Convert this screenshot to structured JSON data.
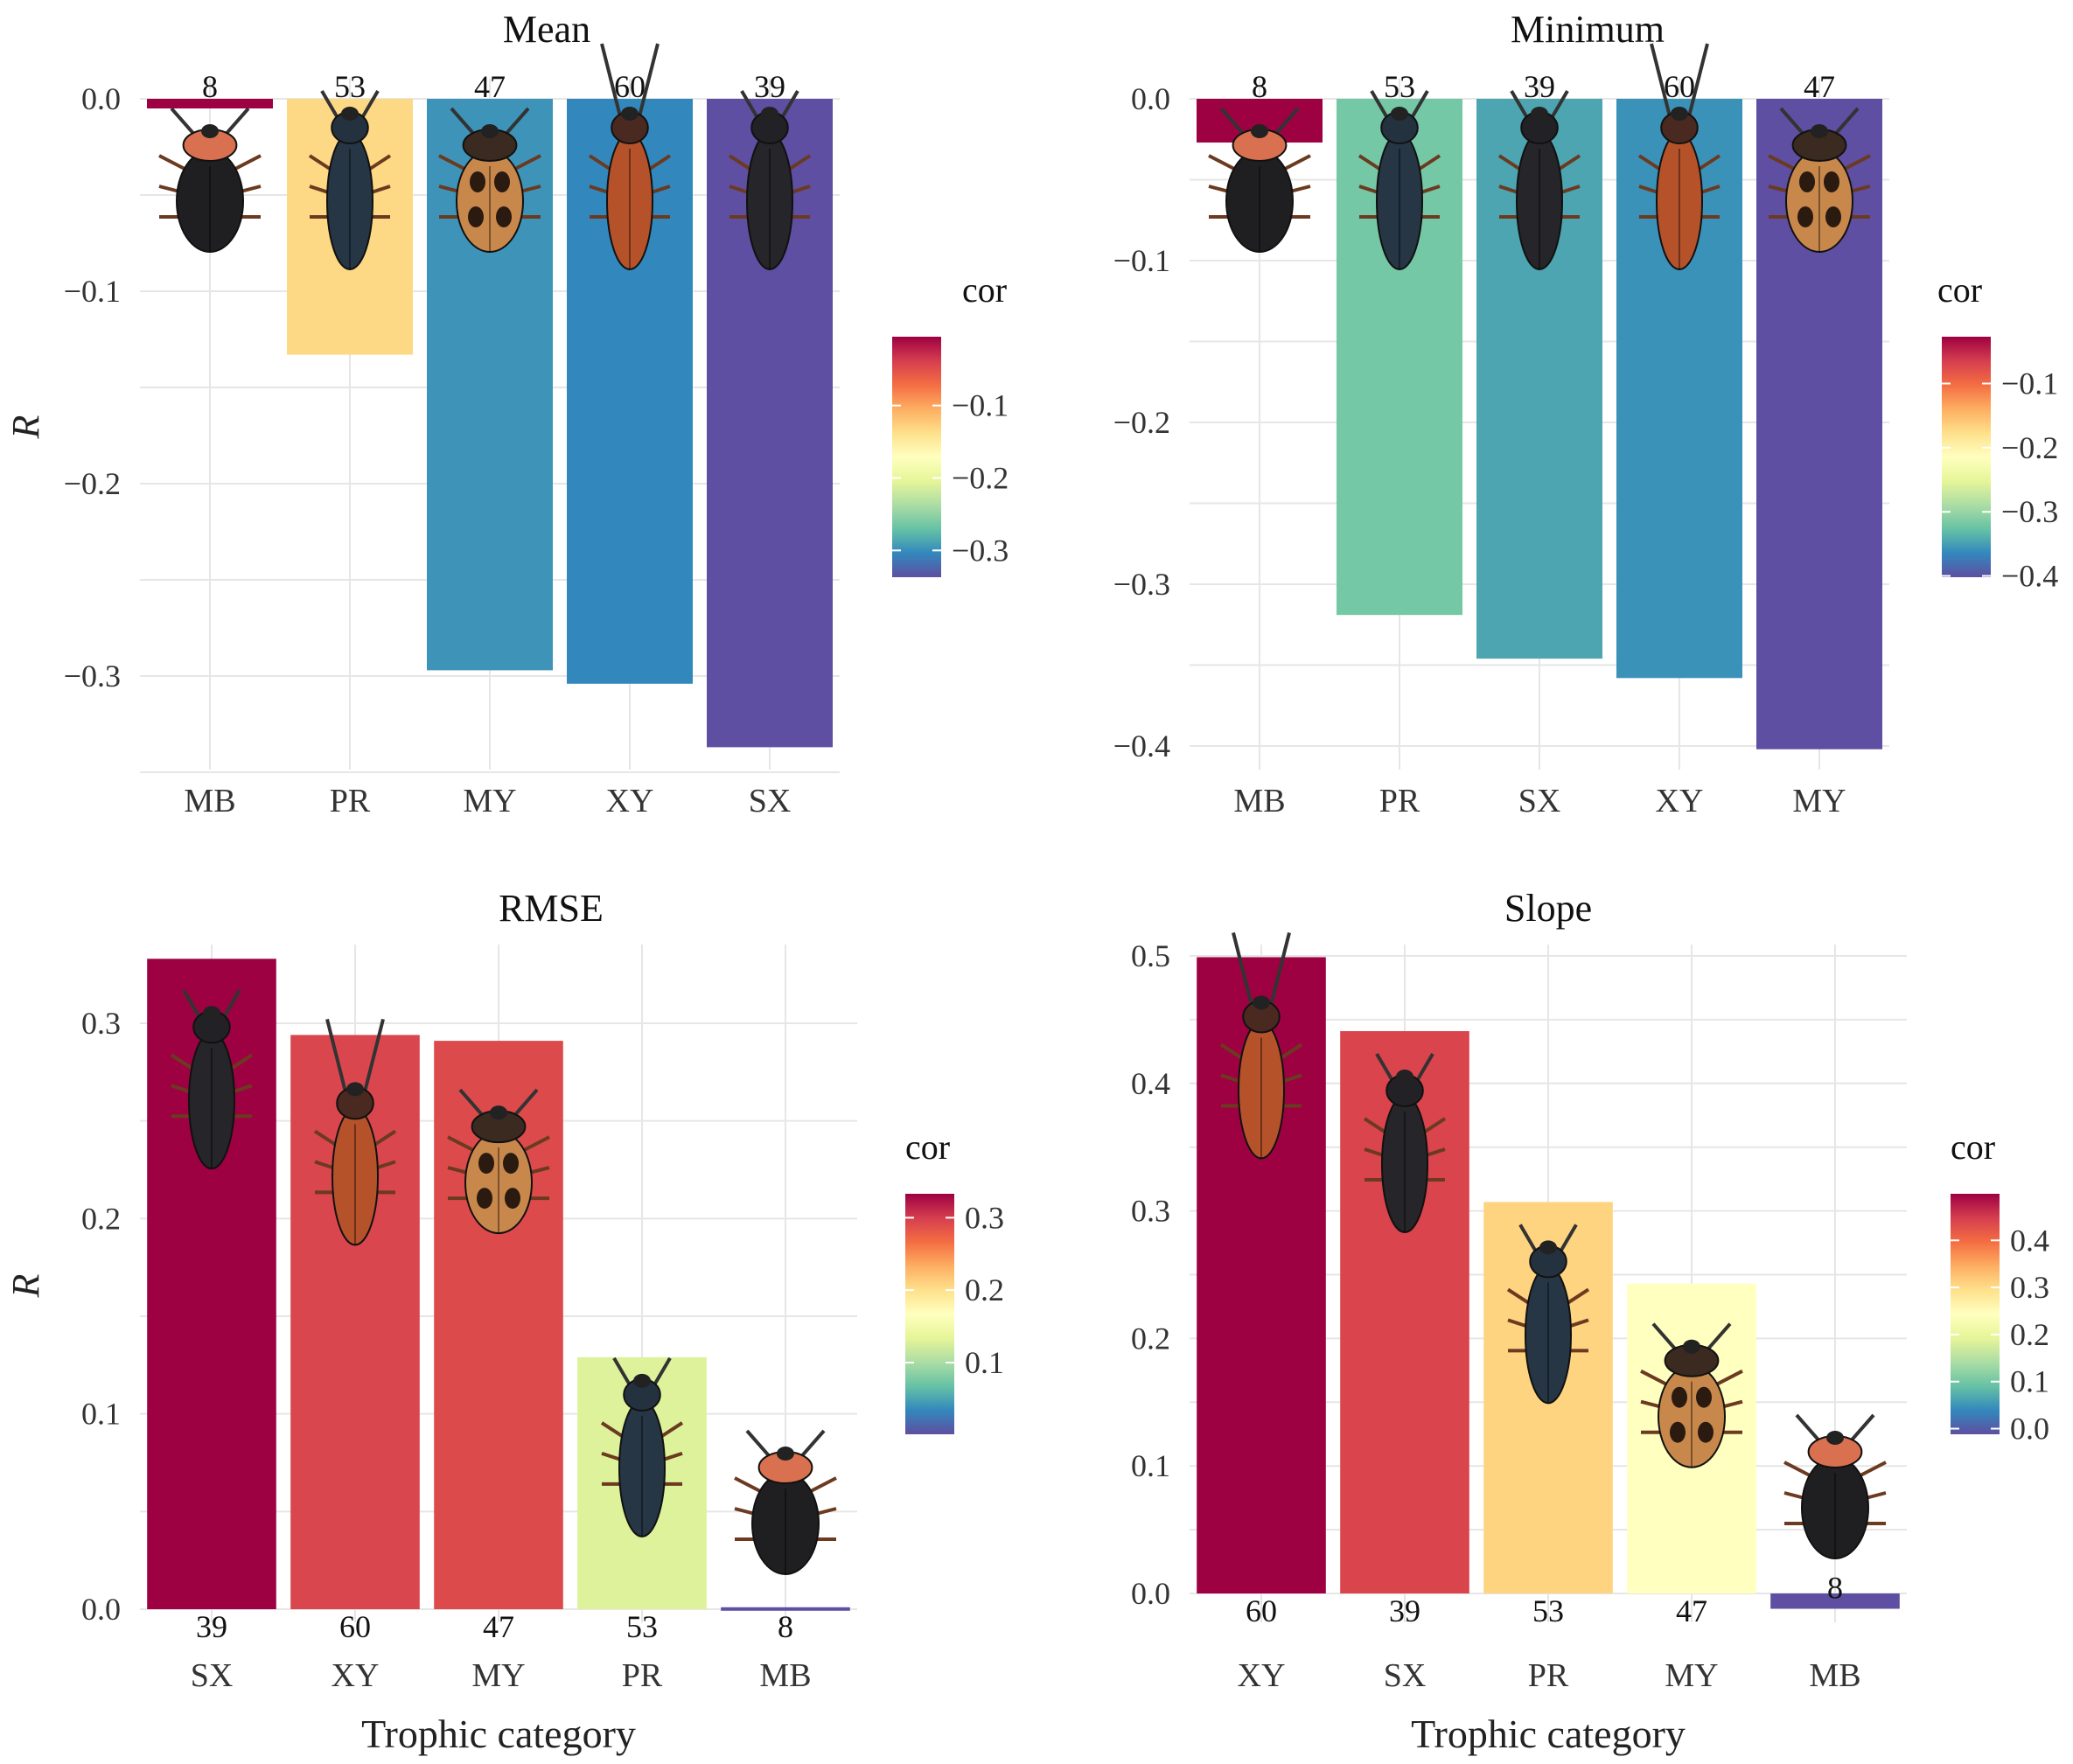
{
  "colors": {
    "scale": [
      "#5E4FA2",
      "#3288BD",
      "#66C2A5",
      "#ABDDA4",
      "#E6F598",
      "#FFFFBF",
      "#FEE08B",
      "#FDAE61",
      "#F46D43",
      "#D53E4F",
      "#9E0142"
    ],
    "beetles": {
      "MB": {
        "head": "#D9704F",
        "body": "#1F1F22"
      },
      "PR": {
        "head": "#243240",
        "body": "#263645"
      },
      "MY": {
        "head": "#3A2A20",
        "body": "#C8884C"
      },
      "XY": {
        "head": "#4A2A20",
        "body": "#B5522A"
      },
      "SX": {
        "head": "#222226",
        "body": "#25252A"
      }
    }
  },
  "icons": {
    "beetle": "beetle-icon"
  },
  "figure": {
    "xlabel": "Trophic category",
    "ylabel": "R"
  },
  "chart_data": [
    {
      "type": "bar",
      "title": "Mean",
      "categories": [
        "MB",
        "PR",
        "MY",
        "XY",
        "SX"
      ],
      "values": [
        -0.005,
        -0.133,
        -0.297,
        -0.304,
        -0.337
      ],
      "counts": [
        "8",
        "53",
        "47",
        "60",
        "39"
      ],
      "ylim": [
        -0.35,
        0.005
      ],
      "yticks": [
        0.0,
        -0.1,
        -0.2,
        -0.3
      ],
      "ytick_labels": [
        "0.0",
        "−0.1",
        "−0.2",
        "−0.3"
      ],
      "legend": {
        "title": "cor",
        "range": [
          -0.337,
          -0.005
        ],
        "ticks": [
          -0.1,
          -0.2,
          -0.3
        ],
        "tick_labels": [
          "−0.1",
          "−0.2",
          "−0.3"
        ]
      }
    },
    {
      "type": "bar",
      "title": "Minimum",
      "categories": [
        "MB",
        "PR",
        "SX",
        "XY",
        "MY"
      ],
      "values": [
        -0.027,
        -0.319,
        -0.346,
        -0.358,
        -0.402
      ],
      "counts": [
        "8",
        "53",
        "39",
        "60",
        "47"
      ],
      "ylim": [
        -0.42,
        0.005
      ],
      "yticks": [
        0.0,
        -0.1,
        -0.2,
        -0.3,
        -0.4
      ],
      "ytick_labels": [
        "0.0",
        "−0.1",
        "−0.2",
        "−0.3",
        "−0.4"
      ],
      "legend": {
        "title": "cor",
        "range": [
          -0.402,
          -0.027
        ],
        "ticks": [
          -0.1,
          -0.2,
          -0.3,
          -0.4
        ],
        "tick_labels": [
          "−0.1",
          "−0.2",
          "−0.3",
          "−0.4"
        ]
      }
    },
    {
      "type": "bar",
      "title": "RMSE",
      "categories": [
        "SX",
        "XY",
        "MY",
        "PR",
        "MB"
      ],
      "values": [
        0.333,
        0.294,
        0.291,
        0.129,
        0.001
      ],
      "counts": [
        "39",
        "60",
        "47",
        "53",
        "8"
      ],
      "ylim": [
        0,
        0.335
      ],
      "yticks": [
        0.0,
        0.1,
        0.2,
        0.3
      ],
      "ytick_labels": [
        "0.0",
        "0.1",
        "0.2",
        "0.3"
      ],
      "legend": {
        "title": "cor",
        "range": [
          0.001,
          0.333
        ],
        "ticks": [
          0.1,
          0.2,
          0.3
        ],
        "tick_labels": [
          "0.1",
          "0.2",
          "0.3"
        ]
      }
    },
    {
      "type": "bar",
      "title": "Slope",
      "categories": [
        "XY",
        "SX",
        "PR",
        "MY",
        "MB"
      ],
      "values": [
        0.499,
        0.441,
        0.307,
        0.243,
        -0.012
      ],
      "counts": [
        "60",
        "39",
        "53",
        "47",
        "8"
      ],
      "ylim": [
        -0.012,
        0.5
      ],
      "yticks": [
        0.0,
        0.1,
        0.2,
        0.3,
        0.4,
        0.5
      ],
      "ytick_labels": [
        "0.0",
        "0.1",
        "0.2",
        "0.3",
        "0.4",
        "0.5"
      ],
      "legend": {
        "title": "cor",
        "range": [
          -0.012,
          0.499
        ],
        "ticks": [
          0.0,
          0.1,
          0.2,
          0.3,
          0.4
        ],
        "tick_labels": [
          "0.0",
          "0.1",
          "0.2",
          "0.3",
          "0.4"
        ]
      }
    }
  ]
}
